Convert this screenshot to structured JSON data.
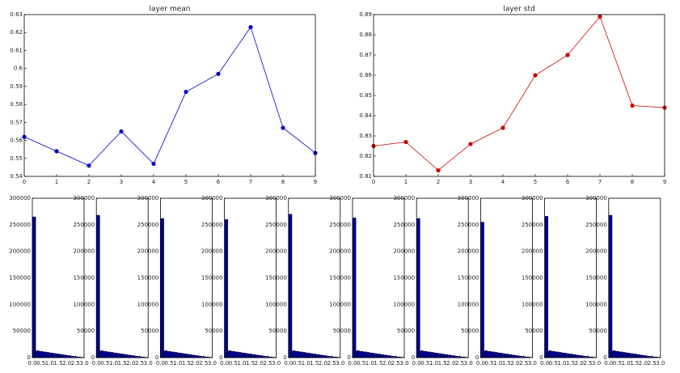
{
  "chart_data": [
    {
      "type": "line",
      "title": "layer mean",
      "x": [
        0,
        1,
        2,
        3,
        4,
        5,
        6,
        7,
        8,
        9
      ],
      "values": [
        0.562,
        0.554,
        0.546,
        0.565,
        0.547,
        0.587,
        0.597,
        0.623,
        0.567,
        0.553
      ],
      "color": "#0000cc",
      "xlim": [
        0,
        9
      ],
      "xticks": [
        0,
        1,
        2,
        3,
        4,
        5,
        6,
        7,
        8,
        9
      ],
      "ylim": [
        0.54,
        0.63
      ],
      "yticks": [
        0.54,
        0.55,
        0.56,
        0.57,
        0.58,
        0.59,
        0.6,
        0.61,
        0.62,
        0.63
      ]
    },
    {
      "type": "line",
      "title": "layer std",
      "x": [
        0,
        1,
        2,
        3,
        4,
        5,
        6,
        7,
        8,
        9
      ],
      "values": [
        0.825,
        0.827,
        0.813,
        0.826,
        0.834,
        0.86,
        0.87,
        0.889,
        0.845,
        0.844
      ],
      "color": "#cc0000",
      "xlim": [
        0,
        9
      ],
      "xticks": [
        0,
        1,
        2,
        3,
        4,
        5,
        6,
        7,
        8,
        9
      ],
      "ylim": [
        0.81,
        0.89
      ],
      "yticks": [
        0.81,
        0.82,
        0.83,
        0.84,
        0.85,
        0.86,
        0.87,
        0.88,
        0.89
      ]
    },
    {
      "type": "histogram",
      "bins": [
        0,
        0.2,
        0.4,
        0.6,
        0.8,
        1,
        1.2,
        1.4,
        1.6,
        1.8,
        2,
        2.2,
        2.4,
        2.6,
        2.8,
        3
      ],
      "values": [
        265000,
        13000,
        12000,
        11000,
        10000,
        9000,
        8000,
        7000,
        6000,
        5000,
        4000,
        3000,
        2000,
        1500,
        800
      ],
      "color": "#00008b",
      "xlim": [
        0,
        3
      ],
      "xticks": [
        {
          "value": 0,
          "label": "0.0"
        },
        {
          "value": 0.5,
          "label": "0.5"
        },
        {
          "value": 1,
          "label": "1.0"
        },
        {
          "value": 1.5,
          "label": "1.5"
        },
        {
          "value": 2,
          "label": "2.0"
        },
        {
          "value": 2.5,
          "label": "2.5"
        },
        {
          "value": 3,
          "label": "3.0"
        }
      ],
      "ylim": [
        0,
        300000
      ],
      "yticks": [
        0,
        50000,
        100000,
        150000,
        200000,
        250000,
        300000
      ]
    },
    {
      "type": "histogram",
      "bins": [
        0,
        0.2,
        0.4,
        0.6,
        0.8,
        1,
        1.2,
        1.4,
        1.6,
        1.8,
        2,
        2.2,
        2.4,
        2.6,
        2.8,
        3
      ],
      "values": [
        268000,
        13000,
        12000,
        11000,
        10000,
        9000,
        8000,
        7000,
        6000,
        5000,
        4000,
        3000,
        2000,
        1500,
        800
      ],
      "color": "#00008b",
      "xlim": [
        0,
        3
      ],
      "xticks": [
        {
          "value": 0,
          "label": "0.0"
        },
        {
          "value": 0.5,
          "label": "0.5"
        },
        {
          "value": 1,
          "label": "1.0"
        },
        {
          "value": 1.5,
          "label": "1.5"
        },
        {
          "value": 2,
          "label": "2.0"
        },
        {
          "value": 2.5,
          "label": "2.5"
        },
        {
          "value": 3,
          "label": "3.0"
        }
      ],
      "ylim": [
        0,
        300000
      ],
      "yticks": [
        0,
        50000,
        100000,
        150000,
        200000,
        250000,
        300000
      ]
    },
    {
      "type": "histogram",
      "bins": [
        0,
        0.2,
        0.4,
        0.6,
        0.8,
        1,
        1.2,
        1.4,
        1.6,
        1.8,
        2,
        2.2,
        2.4,
        2.6,
        2.8,
        3
      ],
      "values": [
        262000,
        13000,
        12000,
        11000,
        10000,
        9000,
        8000,
        7000,
        6000,
        5000,
        4000,
        3000,
        2000,
        1500,
        800
      ],
      "color": "#00008b",
      "xlim": [
        0,
        3
      ],
      "xticks": [
        {
          "value": 0,
          "label": "0.0"
        },
        {
          "value": 0.5,
          "label": "0.5"
        },
        {
          "value": 1,
          "label": "1.0"
        },
        {
          "value": 1.5,
          "label": "1.5"
        },
        {
          "value": 2,
          "label": "2.0"
        },
        {
          "value": 2.5,
          "label": "2.5"
        },
        {
          "value": 3,
          "label": "3.0"
        }
      ],
      "ylim": [
        0,
        300000
      ],
      "yticks": [
        0,
        50000,
        100000,
        150000,
        200000,
        250000,
        300000
      ]
    },
    {
      "type": "histogram",
      "bins": [
        0,
        0.2,
        0.4,
        0.6,
        0.8,
        1,
        1.2,
        1.4,
        1.6,
        1.8,
        2,
        2.2,
        2.4,
        2.6,
        2.8,
        3
      ],
      "values": [
        260000,
        13000,
        12000,
        11000,
        10000,
        9000,
        8000,
        7000,
        6000,
        5000,
        4000,
        3000,
        2000,
        1500,
        800
      ],
      "color": "#00008b",
      "xlim": [
        0,
        3
      ],
      "xticks": [
        {
          "value": 0,
          "label": "0.0"
        },
        {
          "value": 0.5,
          "label": "0.5"
        },
        {
          "value": 1,
          "label": "1.0"
        },
        {
          "value": 1.5,
          "label": "1.5"
        },
        {
          "value": 2,
          "label": "2.0"
        },
        {
          "value": 2.5,
          "label": "2.5"
        },
        {
          "value": 3,
          "label": "3.0"
        }
      ],
      "ylim": [
        0,
        300000
      ],
      "yticks": [
        0,
        50000,
        100000,
        150000,
        200000,
        250000,
        300000
      ]
    },
    {
      "type": "histogram",
      "bins": [
        0,
        0.2,
        0.4,
        0.6,
        0.8,
        1,
        1.2,
        1.4,
        1.6,
        1.8,
        2,
        2.2,
        2.4,
        2.6,
        2.8,
        3
      ],
      "values": [
        270000,
        13000,
        12000,
        11000,
        10000,
        9000,
        8000,
        7000,
        6000,
        5000,
        4000,
        3000,
        2000,
        1500,
        800
      ],
      "color": "#00008b",
      "xlim": [
        0,
        3
      ],
      "xticks": [
        {
          "value": 0,
          "label": "0.0"
        },
        {
          "value": 0.5,
          "label": "0.5"
        },
        {
          "value": 1,
          "label": "1.0"
        },
        {
          "value": 1.5,
          "label": "1.5"
        },
        {
          "value": 2,
          "label": "2.0"
        },
        {
          "value": 2.5,
          "label": "2.5"
        },
        {
          "value": 3,
          "label": "3.0"
        }
      ],
      "ylim": [
        0,
        300000
      ],
      "yticks": [
        0,
        50000,
        100000,
        150000,
        200000,
        250000,
        300000
      ]
    },
    {
      "type": "histogram",
      "bins": [
        0,
        0.2,
        0.4,
        0.6,
        0.8,
        1,
        1.2,
        1.4,
        1.6,
        1.8,
        2,
        2.2,
        2.4,
        2.6,
        2.8,
        3
      ],
      "values": [
        263000,
        13000,
        12000,
        11000,
        10000,
        9000,
        8000,
        7000,
        6000,
        5000,
        4000,
        3000,
        2000,
        1500,
        800
      ],
      "color": "#00008b",
      "xlim": [
        0,
        3
      ],
      "xticks": [
        {
          "value": 0,
          "label": "0.0"
        },
        {
          "value": 0.5,
          "label": "0.5"
        },
        {
          "value": 1,
          "label": "1.0"
        },
        {
          "value": 1.5,
          "label": "1.5"
        },
        {
          "value": 2,
          "label": "2.0"
        },
        {
          "value": 2.5,
          "label": "2.5"
        },
        {
          "value": 3,
          "label": "3.0"
        }
      ],
      "ylim": [
        0,
        300000
      ],
      "yticks": [
        0,
        50000,
        100000,
        150000,
        200000,
        250000,
        300000
      ]
    },
    {
      "type": "histogram",
      "bins": [
        0,
        0.2,
        0.4,
        0.6,
        0.8,
        1,
        1.2,
        1.4,
        1.6,
        1.8,
        2,
        2.2,
        2.4,
        2.6,
        2.8,
        3
      ],
      "values": [
        262000,
        13000,
        12000,
        11000,
        10000,
        9000,
        8000,
        7000,
        6000,
        5000,
        4000,
        3000,
        2000,
        1500,
        800
      ],
      "color": "#00008b",
      "xlim": [
        0,
        3
      ],
      "xticks": [
        {
          "value": 0,
          "label": "0.0"
        },
        {
          "value": 0.5,
          "label": "0.5"
        },
        {
          "value": 1,
          "label": "1.0"
        },
        {
          "value": 1.5,
          "label": "1.5"
        },
        {
          "value": 2,
          "label": "2.0"
        },
        {
          "value": 2.5,
          "label": "2.5"
        },
        {
          "value": 3,
          "label": "3.0"
        }
      ],
      "ylim": [
        0,
        300000
      ],
      "yticks": [
        0,
        50000,
        100000,
        150000,
        200000,
        250000,
        300000
      ]
    },
    {
      "type": "histogram",
      "bins": [
        0,
        0.2,
        0.4,
        0.6,
        0.8,
        1,
        1.2,
        1.4,
        1.6,
        1.8,
        2,
        2.2,
        2.4,
        2.6,
        2.8,
        3
      ],
      "values": [
        255000,
        13000,
        12000,
        11000,
        10000,
        9000,
        8000,
        7000,
        6000,
        5000,
        4000,
        3000,
        2000,
        1500,
        800
      ],
      "color": "#00008b",
      "xlim": [
        0,
        3
      ],
      "xticks": [
        {
          "value": 0,
          "label": "0.0"
        },
        {
          "value": 0.5,
          "label": "0.5"
        },
        {
          "value": 1,
          "label": "1.0"
        },
        {
          "value": 1.5,
          "label": "1.5"
        },
        {
          "value": 2,
          "label": "2.0"
        },
        {
          "value": 2.5,
          "label": "2.5"
        },
        {
          "value": 3,
          "label": "3.0"
        }
      ],
      "ylim": [
        0,
        300000
      ],
      "yticks": [
        0,
        50000,
        100000,
        150000,
        200000,
        250000,
        300000
      ]
    },
    {
      "type": "histogram",
      "bins": [
        0,
        0.2,
        0.4,
        0.6,
        0.8,
        1,
        1.2,
        1.4,
        1.6,
        1.8,
        2,
        2.2,
        2.4,
        2.6,
        2.8,
        3
      ],
      "values": [
        266000,
        13000,
        12000,
        11000,
        10000,
        9000,
        8000,
        7000,
        6000,
        5000,
        4000,
        3000,
        2000,
        1500,
        800
      ],
      "color": "#00008b",
      "xlim": [
        0,
        3
      ],
      "xticks": [
        {
          "value": 0,
          "label": "0.0"
        },
        {
          "value": 0.5,
          "label": "0.5"
        },
        {
          "value": 1,
          "label": "1.0"
        },
        {
          "value": 1.5,
          "label": "1.5"
        },
        {
          "value": 2,
          "label": "2.0"
        },
        {
          "value": 2.5,
          "label": "2.5"
        },
        {
          "value": 3,
          "label": "3.0"
        }
      ],
      "ylim": [
        0,
        300000
      ],
      "yticks": [
        0,
        50000,
        100000,
        150000,
        200000,
        250000,
        300000
      ]
    },
    {
      "type": "histogram",
      "bins": [
        0,
        0.2,
        0.4,
        0.6,
        0.8,
        1,
        1.2,
        1.4,
        1.6,
        1.8,
        2,
        2.2,
        2.4,
        2.6,
        2.8,
        3
      ],
      "values": [
        268000,
        13000,
        12000,
        11000,
        10000,
        9000,
        8000,
        7000,
        6000,
        5000,
        4000,
        3000,
        2000,
        1500,
        800
      ],
      "color": "#00008b",
      "xlim": [
        0,
        3
      ],
      "xticks": [
        {
          "value": 0,
          "label": "0.0"
        },
        {
          "value": 0.5,
          "label": "0.5"
        },
        {
          "value": 1,
          "label": "1.0"
        },
        {
          "value": 1.5,
          "label": "1.5"
        },
        {
          "value": 2,
          "label": "2.0"
        },
        {
          "value": 2.5,
          "label": "2.5"
        },
        {
          "value": 3,
          "label": "3.0"
        }
      ],
      "ylim": [
        0,
        300000
      ],
      "yticks": [
        0,
        50000,
        100000,
        150000,
        200000,
        250000,
        300000
      ]
    }
  ]
}
